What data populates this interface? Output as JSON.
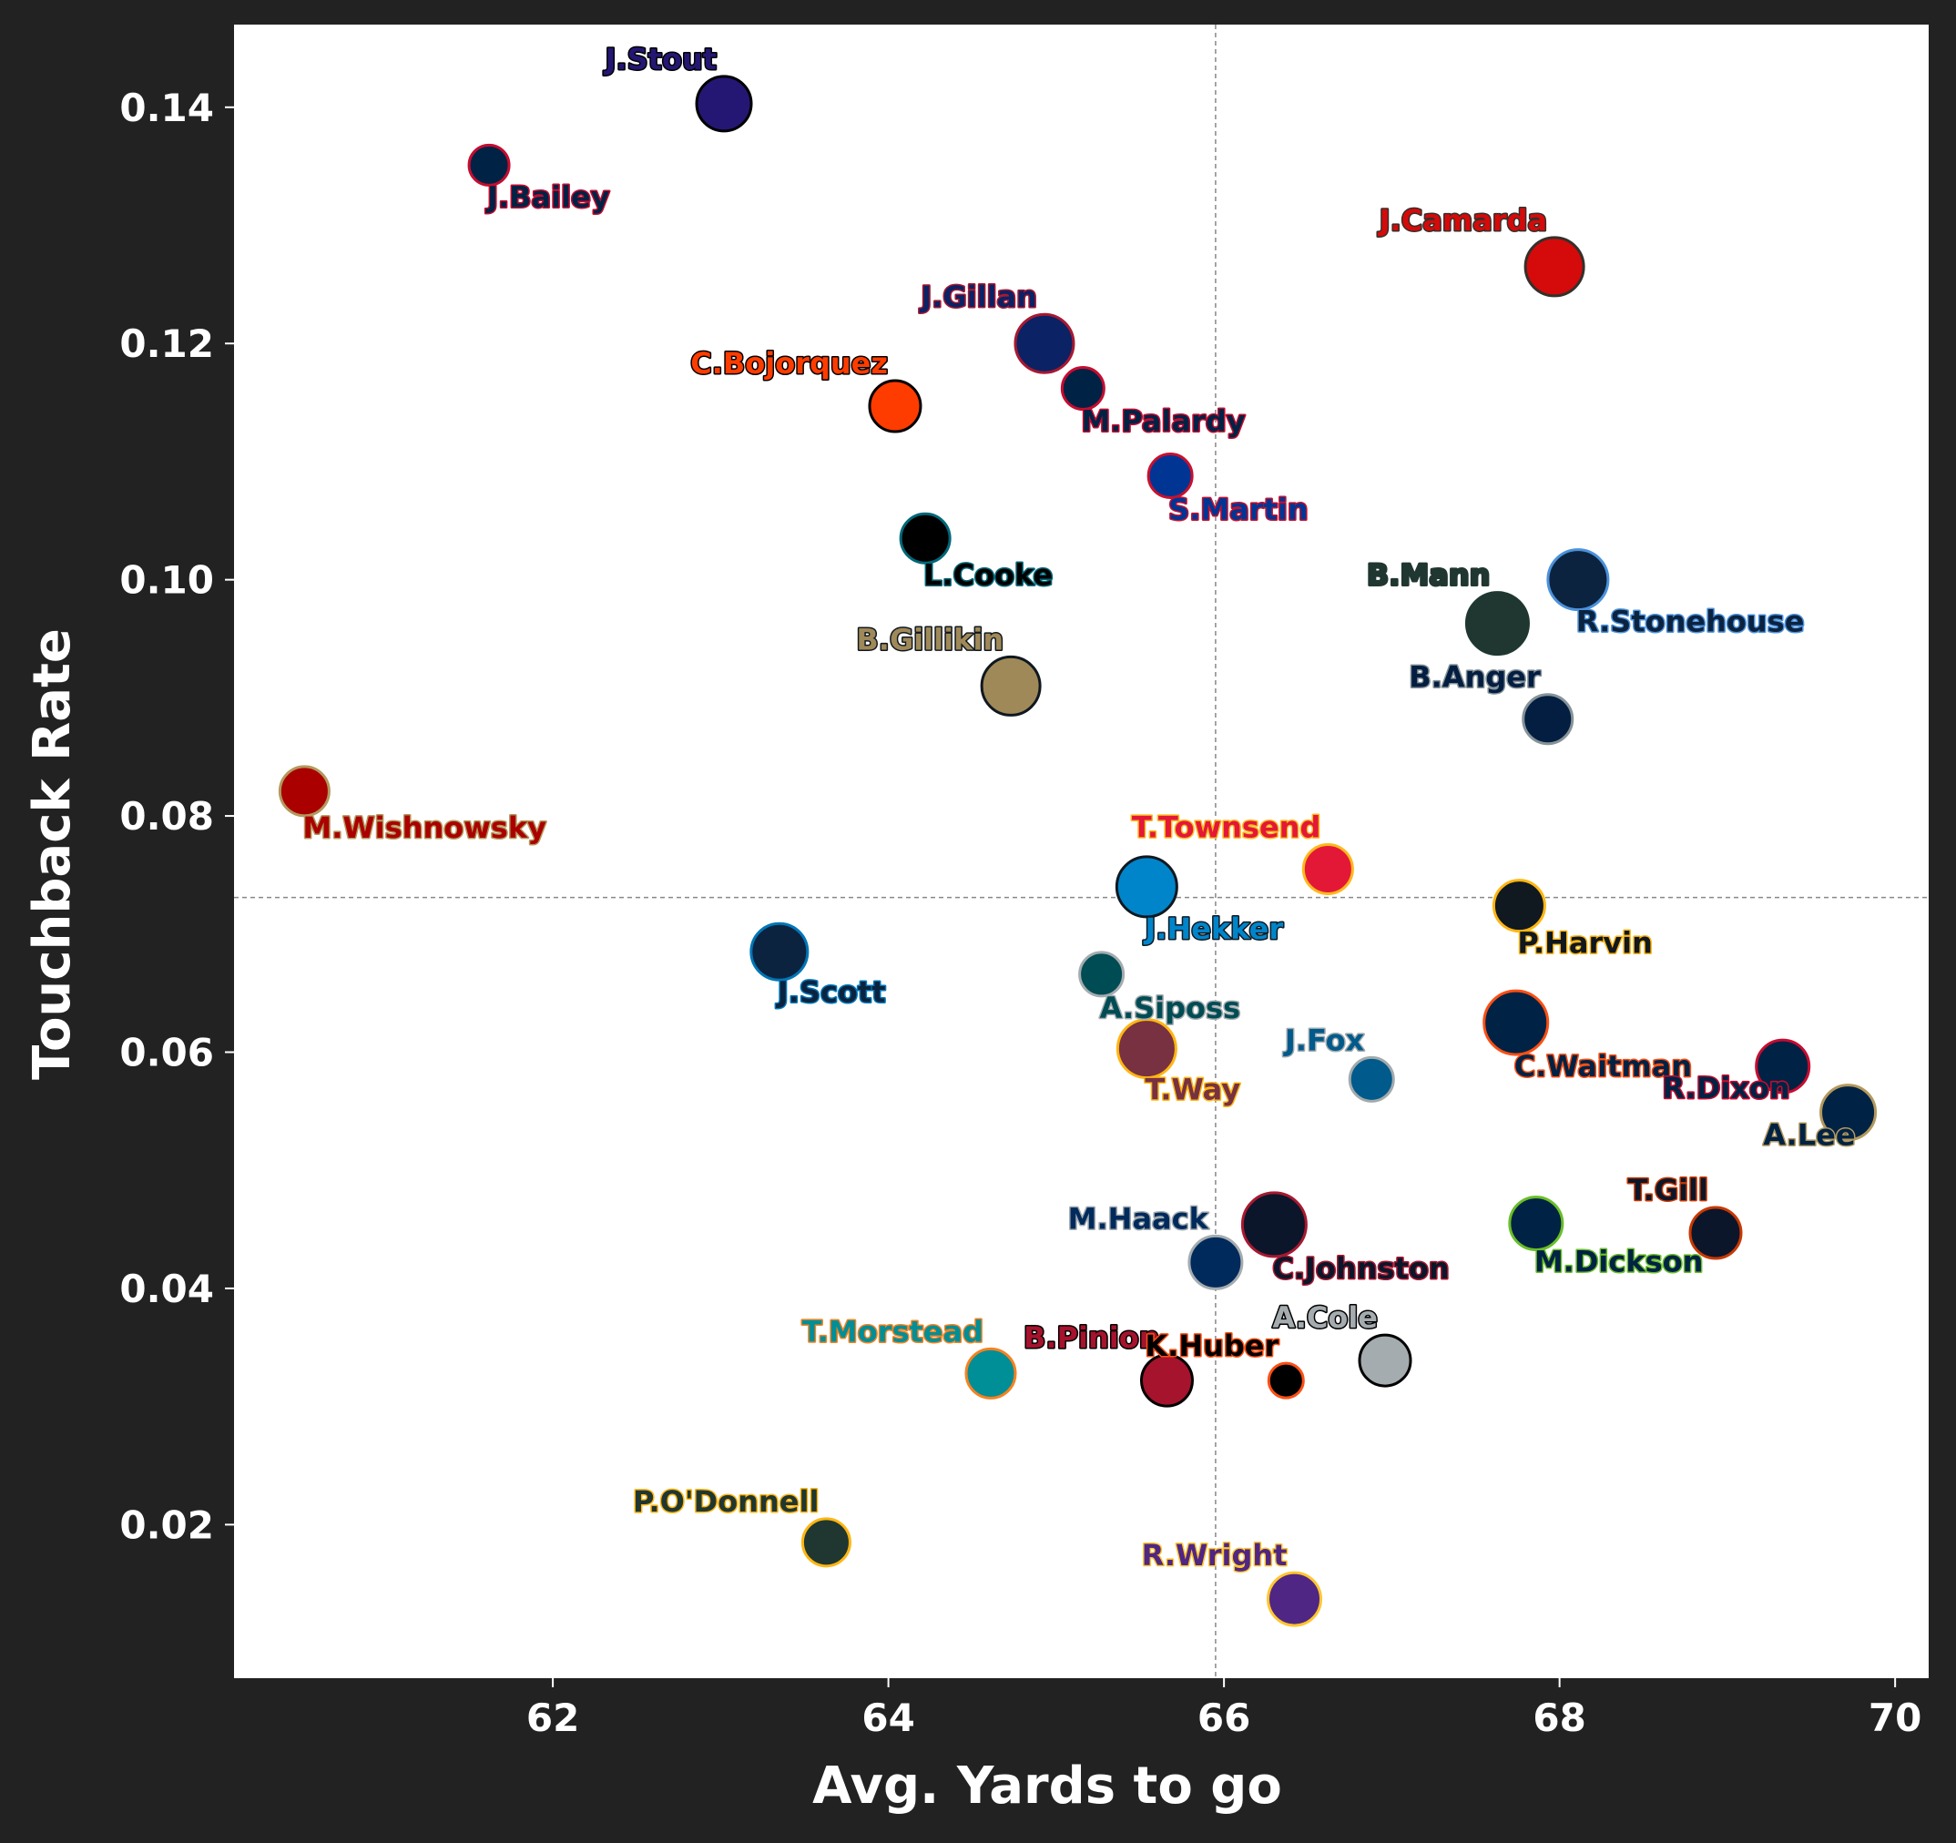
{
  "chart_data": {
    "type": "scatter",
    "title": "",
    "xlabel": "Avg. Yards to go",
    "ylabel": "Touchback Rate",
    "xlim": [
      60.1,
      70.2
    ],
    "ylim": [
      0.007,
      0.147
    ],
    "xticks": [
      62,
      64,
      66,
      68,
      70
    ],
    "yticks": [
      0.02,
      0.04,
      0.06,
      0.08,
      0.1,
      0.12,
      0.14
    ],
    "ytick_labels": [
      "0.02",
      "0.04",
      "0.06",
      "0.08",
      "0.10",
      "0.12",
      "0.14"
    ],
    "reference_lines": {
      "x": 65.95,
      "y": 0.0731
    },
    "grid": false,
    "points": [
      {
        "label": "J.Stout",
        "x": 63.02,
        "y": 0.1403,
        "size": 30,
        "fill": "#241773",
        "edge": "#000000",
        "text_color": "#241773",
        "text_edge": "#000000",
        "label_pos": "above-left"
      },
      {
        "label": "J.Bailey",
        "x": 61.62,
        "y": 0.1351,
        "size": 22,
        "fill": "#002244",
        "edge": "#C60C30",
        "text_color": "#002244",
        "text_edge": "#C60C30",
        "label_pos": "below-right"
      },
      {
        "label": "J.Camarda",
        "x": 67.97,
        "y": 0.1265,
        "size": 32,
        "fill": "#D50A0A",
        "edge": "#34302B",
        "text_color": "#D50A0A",
        "text_edge": "#34302B",
        "label_pos": "above-left"
      },
      {
        "label": "J.Gillan",
        "x": 64.93,
        "y": 0.12,
        "size": 32,
        "fill": "#0B2265",
        "edge": "#A71930",
        "text_color": "#0B2265",
        "text_edge": "#A71930",
        "label_pos": "above-left"
      },
      {
        "label": "C.Bojorquez",
        "x": 64.04,
        "y": 0.1147,
        "size": 28,
        "fill": "#FF3C00",
        "edge": "#000000",
        "text_color": "#FF3C00",
        "text_edge": "#000000",
        "label_pos": "above-left"
      },
      {
        "label": "M.Palardy",
        "x": 65.16,
        "y": 0.1162,
        "size": 23,
        "fill": "#002244",
        "edge": "#C60C30",
        "text_color": "#002244",
        "text_edge": "#C60C30",
        "label_pos": "below-right"
      },
      {
        "label": "S.Martin",
        "x": 65.68,
        "y": 0.1088,
        "size": 24,
        "fill": "#003594",
        "edge": "#C8102E",
        "text_color": "#003594",
        "text_edge": "#C8102E",
        "label_pos": "below-right"
      },
      {
        "label": "L.Cooke",
        "x": 64.22,
        "y": 0.1035,
        "size": 27,
        "fill": "#000000",
        "edge": "#006778",
        "text_color": "#000000",
        "text_edge": "#006778",
        "label_pos": "below-right"
      },
      {
        "label": "R.Stonehouse",
        "x": 68.11,
        "y": 0.1,
        "size": 33,
        "fill": "#0C2340",
        "edge": "#4B92DB",
        "text_color": "#0C2340",
        "text_edge": "#4B92DB",
        "label_pos": "below-right"
      },
      {
        "label": "B.Mann",
        "x": 67.63,
        "y": 0.0963,
        "size": 34,
        "fill": "#203731",
        "edge": "#203731",
        "text_color": "#203731",
        "text_edge": "#203731",
        "label_pos": "above-left"
      },
      {
        "label": "B.Gillikin",
        "x": 64.73,
        "y": 0.091,
        "size": 32,
        "fill": "#9F8958",
        "edge": "#101820",
        "text_color": "#9F8958",
        "text_edge": "#101820",
        "label_pos": "above-left"
      },
      {
        "label": "B.Anger",
        "x": 67.93,
        "y": 0.0882,
        "size": 27,
        "fill": "#041E42",
        "edge": "#869397",
        "text_color": "#041E42",
        "text_edge": "#869397",
        "label_pos": "above-left"
      },
      {
        "label": "M.Wishnowsky",
        "x": 60.52,
        "y": 0.0821,
        "size": 27,
        "fill": "#AA0000",
        "edge": "#B3995D",
        "text_color": "#AA0000",
        "text_edge": "#B3995D",
        "label_pos": "below-right"
      },
      {
        "label": "T.Townsend",
        "x": 66.62,
        "y": 0.0755,
        "size": 27,
        "fill": "#E31837",
        "edge": "#FFB81C",
        "text_color": "#E31837",
        "text_edge": "#FFB81C",
        "label_pos": "above-left"
      },
      {
        "label": "J.Hekker",
        "x": 65.54,
        "y": 0.074,
        "size": 33,
        "fill": "#0085CA",
        "edge": "#101820",
        "text_color": "#0085CA",
        "text_edge": "#101820",
        "label_pos": "below-right"
      },
      {
        "label": "P.Harvin",
        "x": 67.76,
        "y": 0.0724,
        "size": 28,
        "fill": "#101820",
        "edge": "#FFB612",
        "text_color": "#101820",
        "text_edge": "#FFB612",
        "label_pos": "below-right"
      },
      {
        "label": "J.Scott",
        "x": 63.35,
        "y": 0.0685,
        "size": 31,
        "fill": "#0C2340",
        "edge": "#0076B6",
        "text_color": "#0C2340",
        "text_edge": "#0076B6",
        "label_pos": "below-right"
      },
      {
        "label": "A.Siposs",
        "x": 65.27,
        "y": 0.0666,
        "size": 24,
        "fill": "#004C54",
        "edge": "#A5ACAF",
        "text_color": "#004C54",
        "text_edge": "#A5ACAF",
        "label_pos": "below-right"
      },
      {
        "label": "C.Waitman",
        "x": 67.74,
        "y": 0.0625,
        "size": 35,
        "fill": "#002244",
        "edge": "#FB4F14",
        "text_color": "#002244",
        "text_edge": "#FB4F14",
        "label_pos": "below-right"
      },
      {
        "label": "T.Way",
        "x": 65.54,
        "y": 0.0603,
        "size": 32,
        "fill": "#773141",
        "edge": "#FFB612",
        "text_color": "#773141",
        "text_edge": "#FFB612",
        "label_pos": "below-right"
      },
      {
        "label": "J.Fox",
        "x": 66.88,
        "y": 0.0577,
        "size": 24,
        "fill": "#005A8B",
        "edge": "#A2AAAD",
        "text_color": "#005A8B",
        "text_edge": "#A2AAAD",
        "label_pos": "above-left"
      },
      {
        "label": "R.Dixon",
        "x": 69.33,
        "y": 0.0588,
        "size": 29,
        "fill": "#002244",
        "edge": "#C60C30",
        "text_color": "#002244",
        "text_edge": "#C60C30",
        "label_pos": "below-left"
      },
      {
        "label": "A.Lee",
        "x": 69.72,
        "y": 0.0549,
        "size": 30,
        "fill": "#002244",
        "edge": "#B3995D",
        "text_color": "#002244",
        "text_edge": "#B3995D",
        "label_pos": "below-left"
      },
      {
        "label": "T.Gill",
        "x": 68.93,
        "y": 0.0447,
        "size": 28,
        "fill": "#0B162A",
        "edge": "#C83803",
        "text_color": "#0B162A",
        "text_edge": "#C83803",
        "label_pos": "above-left"
      },
      {
        "label": "M.Dickson",
        "x": 67.86,
        "y": 0.0455,
        "size": 29,
        "fill": "#002244",
        "edge": "#69BE28",
        "text_color": "#002244",
        "text_edge": "#69BE28",
        "label_pos": "below-right"
      },
      {
        "label": "C.Johnston",
        "x": 66.3,
        "y": 0.0454,
        "size": 35,
        "fill": "#0B162A",
        "edge": "#A71930",
        "text_color": "#0B162A",
        "text_edge": "#A71930",
        "label_pos": "below-right"
      },
      {
        "label": "M.Haack",
        "x": 65.95,
        "y": 0.0422,
        "size": 29,
        "fill": "#002A5C",
        "edge": "#A5ACAF",
        "text_color": "#002A5C",
        "text_edge": "#A5ACAF",
        "label_pos": "above-left"
      },
      {
        "label": "T.Morstead",
        "x": 64.61,
        "y": 0.0328,
        "size": 27,
        "fill": "#008E97",
        "edge": "#F58220",
        "text_color": "#008E97",
        "text_edge": "#F58220",
        "label_pos": "above-left"
      },
      {
        "label": "B.Pinion",
        "x": 65.66,
        "y": 0.0322,
        "size": 28,
        "fill": "#A5132D",
        "edge": "#000000",
        "text_color": "#A5132D",
        "text_edge": "#000000",
        "label_pos": "above-left"
      },
      {
        "label": "K.Huber",
        "x": 66.37,
        "y": 0.0322,
        "size": 19,
        "fill": "#000000",
        "edge": "#FB4F14",
        "text_color": "#000000",
        "text_edge": "#FB4F14",
        "label_pos": "above-left"
      },
      {
        "label": "A.Cole",
        "x": 66.96,
        "y": 0.0339,
        "size": 28,
        "fill": "#A5ACAF",
        "edge": "#000000",
        "text_color": "#A5ACAF",
        "text_edge": "#000000",
        "label_pos": "above-left"
      },
      {
        "label": "P.O'Donnell",
        "x": 63.63,
        "y": 0.0185,
        "size": 26,
        "fill": "#203731",
        "edge": "#FFB612",
        "text_color": "#203731",
        "text_edge": "#FFB612",
        "label_pos": "above-left"
      },
      {
        "label": "R.Wright",
        "x": 66.42,
        "y": 0.0137,
        "size": 29,
        "fill": "#4F2683",
        "edge": "#FFC62F",
        "text_color": "#4F2683",
        "text_edge": "#FFC62F",
        "label_pos": "above-left"
      }
    ]
  }
}
